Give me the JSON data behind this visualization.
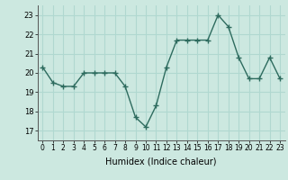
{
  "x": [
    0,
    1,
    2,
    3,
    4,
    5,
    6,
    7,
    8,
    9,
    10,
    11,
    12,
    13,
    14,
    15,
    16,
    17,
    18,
    19,
    20,
    21,
    22,
    23
  ],
  "y": [
    20.3,
    19.5,
    19.3,
    19.3,
    20.0,
    20.0,
    20.0,
    20.0,
    19.3,
    17.7,
    17.2,
    18.3,
    20.3,
    21.7,
    21.7,
    21.7,
    21.7,
    23.0,
    22.4,
    20.8,
    19.7,
    19.7,
    20.8,
    19.7
  ],
  "xlabel": "Humidex (Indice chaleur)",
  "ylim": [
    16.5,
    23.5
  ],
  "xlim": [
    -0.5,
    23.5
  ],
  "yticks": [
    17,
    18,
    19,
    20,
    21,
    22,
    23
  ],
  "xticks": [
    0,
    1,
    2,
    3,
    4,
    5,
    6,
    7,
    8,
    9,
    10,
    11,
    12,
    13,
    14,
    15,
    16,
    17,
    18,
    19,
    20,
    21,
    22,
    23
  ],
  "line_color": "#2d6b5e",
  "marker": "+",
  "bg_color": "#cce8e0",
  "grid_color": "#b0d8d0",
  "marker_size": 4,
  "line_width": 1.0
}
